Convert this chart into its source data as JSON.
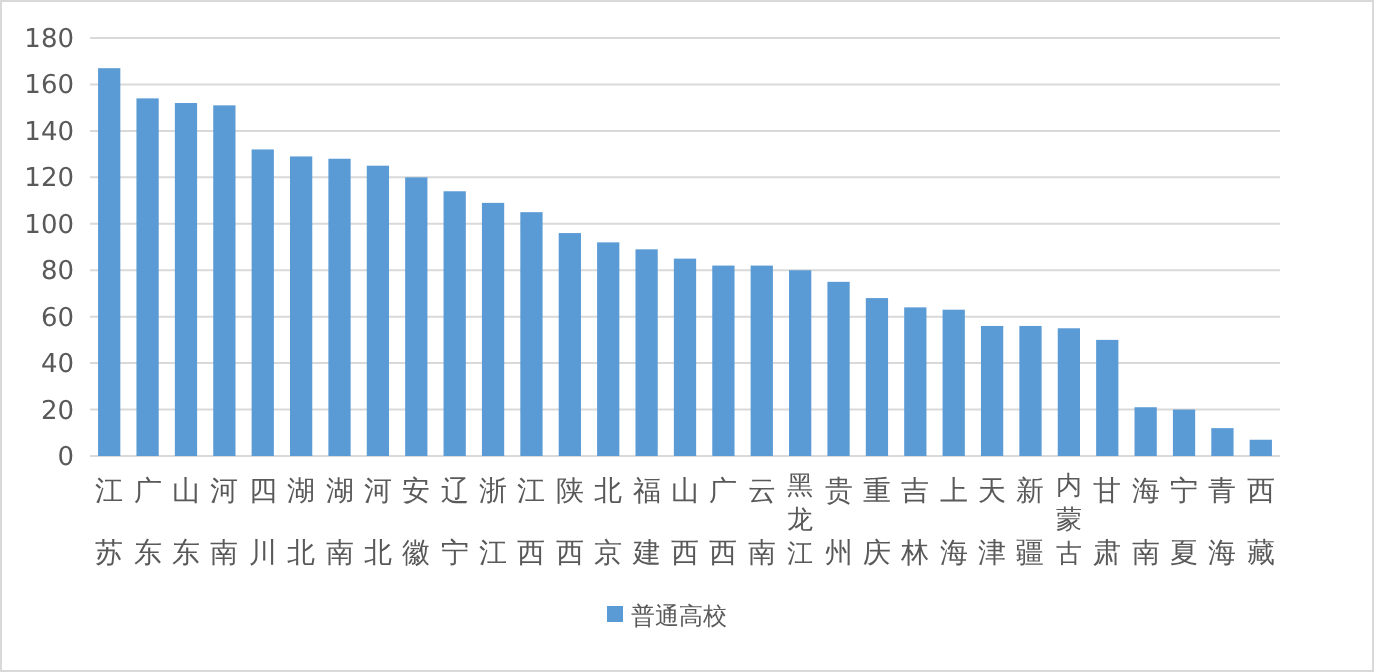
{
  "chart_data": {
    "type": "bar",
    "categories": [
      "江苏",
      "广东",
      "山东",
      "河南",
      "四川",
      "湖北",
      "湖南",
      "河北",
      "安徽",
      "辽宁",
      "浙江",
      "江西",
      "陕西",
      "北京",
      "福建",
      "山西",
      "广西",
      "云南",
      "黑龙江",
      "贵州",
      "重庆",
      "吉林",
      "上海",
      "天津",
      "新疆",
      "内蒙古",
      "甘肃",
      "海南",
      "宁夏",
      "青海",
      "西藏"
    ],
    "series": [
      {
        "name": "普通高校",
        "color": "#5b9bd5",
        "values": [
          167,
          154,
          152,
          151,
          132,
          129,
          128,
          125,
          120,
          114,
          109,
          105,
          96,
          92,
          89,
          85,
          82,
          82,
          80,
          75,
          68,
          64,
          63,
          56,
          56,
          55,
          50,
          21,
          20,
          12,
          7
        ]
      }
    ],
    "ylim": [
      0,
      180
    ],
    "yticks": [
      0,
      20,
      40,
      60,
      80,
      100,
      120,
      140,
      160,
      180
    ],
    "grid": "y",
    "legend": "bottom"
  }
}
